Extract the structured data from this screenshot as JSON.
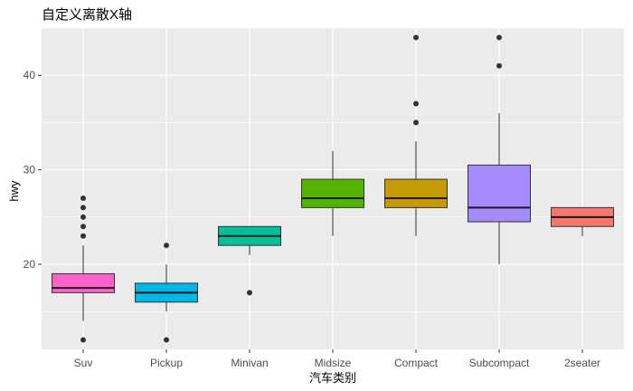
{
  "chart_data": {
    "type": "boxplot",
    "title": "自定义离散X轴",
    "xlabel": "汽车类别",
    "ylabel": "hwy",
    "ylim": [
      11,
      45
    ],
    "yticks": [
      20,
      30,
      40
    ],
    "grid": true,
    "categories": [
      "Suv",
      "Pickup",
      "Minivan",
      "Midsize",
      "Compact",
      "Subcompact",
      "2seater"
    ],
    "boxes": [
      {
        "category": "Suv",
        "q1": 17,
        "median": 17.5,
        "q3": 19,
        "whisker_low": 14,
        "whisker_high": 22,
        "outliers": [
          12,
          23,
          24,
          25,
          26,
          27
        ],
        "fill": "#FF61CC"
      },
      {
        "category": "Pickup",
        "q1": 16,
        "median": 17,
        "q3": 18,
        "whisker_low": 15,
        "whisker_high": 20,
        "outliers": [
          12,
          22
        ],
        "fill": "#00B8E7"
      },
      {
        "category": "Minivan",
        "q1": 22,
        "median": 23,
        "q3": 24,
        "whisker_low": 21,
        "whisker_high": 24,
        "outliers": [
          17
        ],
        "fill": "#00C19A"
      },
      {
        "category": "Midsize",
        "q1": 26,
        "median": 27,
        "q3": 29,
        "whisker_low": 23,
        "whisker_high": 32,
        "outliers": [],
        "fill": "#53B400"
      },
      {
        "category": "Compact",
        "q1": 26,
        "median": 27,
        "q3": 29,
        "whisker_low": 23,
        "whisker_high": 33,
        "outliers": [
          35,
          37,
          44
        ],
        "fill": "#C49A00"
      },
      {
        "category": "Subcompact",
        "q1": 24.5,
        "median": 26,
        "q3": 30.5,
        "whisker_low": 20,
        "whisker_high": 36,
        "outliers": [
          41,
          44
        ],
        "fill": "#A58AFF"
      },
      {
        "category": "2seater",
        "q1": 24,
        "median": 25,
        "q3": 26,
        "whisker_low": 23,
        "whisker_high": 26,
        "outliers": [],
        "fill": "#F8766D"
      }
    ]
  }
}
